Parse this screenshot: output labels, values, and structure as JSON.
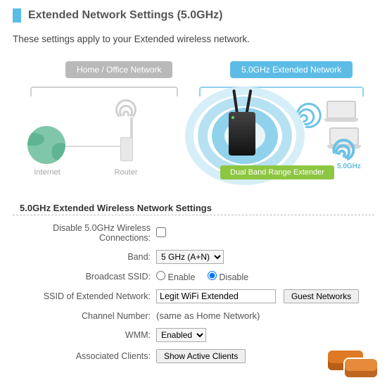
{
  "header": {
    "title": "Extended Network Settings (5.0GHz)"
  },
  "intro": "These settings apply to your Extended wireless network.",
  "diagram": {
    "home_label": "Home / Office Network",
    "extended_label": "5.0GHz Extended Network",
    "internet_caption": "Internet",
    "router_caption": "Router",
    "device_label": "Dual Band Range Extender",
    "freq_badge": "5.0GHz",
    "colors": {
      "home_bracket_bg": "#b9b9b9",
      "ext_bracket_bg": "#5cbce6",
      "device_label_bg": "#8dc641",
      "wifi_blue": "#6cc2e6",
      "halo_light": "#d6eef8",
      "globe": "#7fc7a8"
    }
  },
  "form": {
    "section_title": "5.0GHz Extended Wireless Network Settings",
    "disable": {
      "label": "Disable 5.0GHz Wireless Connections:",
      "checked": false
    },
    "band": {
      "label": "Band:",
      "value": "5 GHz (A+N)",
      "options": [
        "5 GHz (A+N)"
      ]
    },
    "broadcast": {
      "label": "Broadcast SSID:",
      "enable_label": "Enable",
      "disable_label": "Disable",
      "value": "disable"
    },
    "ssid": {
      "label": "SSID of Extended Network:",
      "value": "Legit WiFi Extended",
      "guest_button": "Guest Networks"
    },
    "channel": {
      "label": "Channel Number:",
      "value": "(same as Home Network)"
    },
    "wmm": {
      "label": "WMM:",
      "value": "Enabled",
      "options": [
        "Enabled"
      ]
    },
    "clients": {
      "label": "Associated Clients:",
      "button": "Show Active Clients"
    }
  }
}
